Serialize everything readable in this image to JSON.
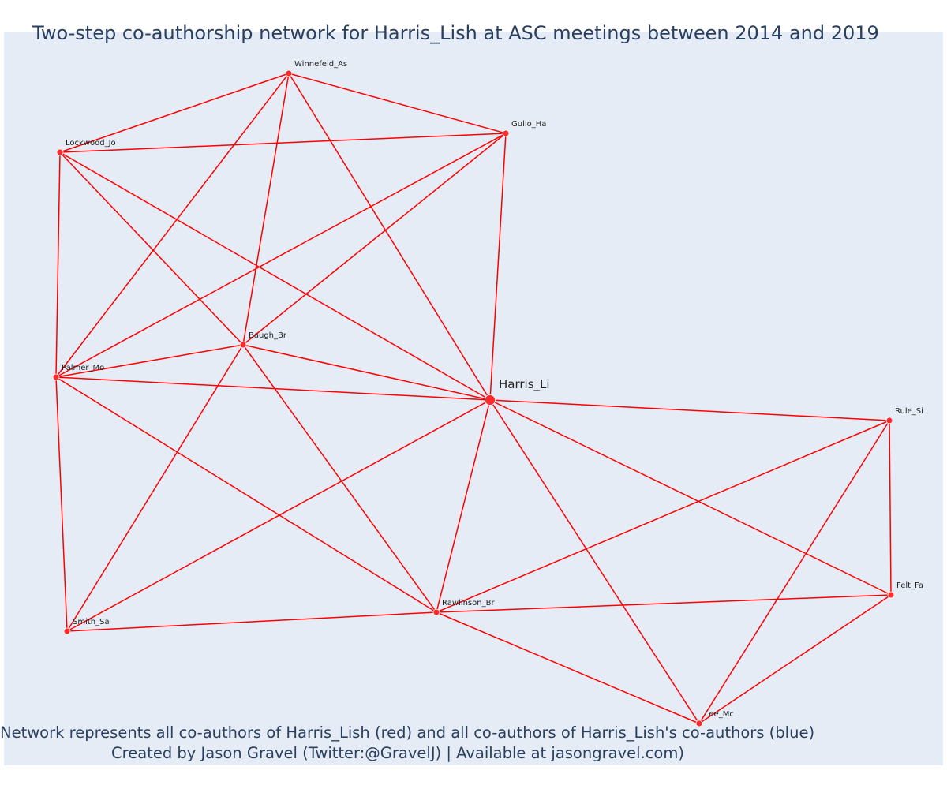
{
  "title": "Two-step co-authorship network for Harris_Lish at ASC meetings between 2014 and 2019",
  "footer": {
    "line1": "Network represents all co-authors of Harris_Lish (red) and all co-authors of Harris_Lish's co-authors (blue)",
    "line2": "Created by Jason Gravel (Twitter:@GravelJ) | Available at jasongravel.com)"
  },
  "colors": {
    "edge": "#ff0000",
    "node": "#ff2a2a",
    "node_outline": "#ffffff",
    "background": "#e5ecf6",
    "text": "#2a3f5f"
  },
  "nodes": [
    {
      "id": "Winnefeld_As",
      "label": "Winnefeld_As",
      "ego": false
    },
    {
      "id": "Gullo_Ha",
      "label": "Gullo_Ha",
      "ego": false
    },
    {
      "id": "Lockwood_Jo",
      "label": "Lockwood_Jo",
      "ego": false
    },
    {
      "id": "Baugh_Br",
      "label": "Baugh_Br",
      "ego": false
    },
    {
      "id": "Palmer_Mo",
      "label": "Palmer_Mo",
      "ego": false
    },
    {
      "id": "Harris_Li",
      "label": "Harris_Li",
      "ego": true
    },
    {
      "id": "Rule_Si",
      "label": "Rule_Si",
      "ego": false
    },
    {
      "id": "Felt_Fa",
      "label": "Felt_Fa",
      "ego": false
    },
    {
      "id": "Rawlinson_Br",
      "label": "Rawlinson_Br",
      "ego": false
    },
    {
      "id": "Smith_Sa",
      "label": "Smith_Sa",
      "ego": false
    },
    {
      "id": "Lee_Mc",
      "label": "Lee_Mc",
      "ego": false
    }
  ],
  "edges": [
    [
      "Winnefeld_As",
      "Lockwood_Jo"
    ],
    [
      "Winnefeld_As",
      "Gullo_Ha"
    ],
    [
      "Winnefeld_As",
      "Baugh_Br"
    ],
    [
      "Winnefeld_As",
      "Palmer_Mo"
    ],
    [
      "Winnefeld_As",
      "Harris_Li"
    ],
    [
      "Gullo_Ha",
      "Lockwood_Jo"
    ],
    [
      "Gullo_Ha",
      "Palmer_Mo"
    ],
    [
      "Gullo_Ha",
      "Baugh_Br"
    ],
    [
      "Gullo_Ha",
      "Harris_Li"
    ],
    [
      "Lockwood_Jo",
      "Palmer_Mo"
    ],
    [
      "Lockwood_Jo",
      "Baugh_Br"
    ],
    [
      "Lockwood_Jo",
      "Harris_Li"
    ],
    [
      "Baugh_Br",
      "Palmer_Mo"
    ],
    [
      "Baugh_Br",
      "Harris_Li"
    ],
    [
      "Baugh_Br",
      "Smith_Sa"
    ],
    [
      "Baugh_Br",
      "Rawlinson_Br"
    ],
    [
      "Palmer_Mo",
      "Harris_Li"
    ],
    [
      "Palmer_Mo",
      "Smith_Sa"
    ],
    [
      "Palmer_Mo",
      "Rawlinson_Br"
    ],
    [
      "Harris_Li",
      "Rule_Si"
    ],
    [
      "Harris_Li",
      "Felt_Fa"
    ],
    [
      "Harris_Li",
      "Rawlinson_Br"
    ],
    [
      "Harris_Li",
      "Smith_Sa"
    ],
    [
      "Harris_Li",
      "Lee_Mc"
    ],
    [
      "Rule_Si",
      "Rawlinson_Br"
    ],
    [
      "Rule_Si",
      "Felt_Fa"
    ],
    [
      "Rule_Si",
      "Lee_Mc"
    ],
    [
      "Felt_Fa",
      "Rawlinson_Br"
    ],
    [
      "Felt_Fa",
      "Lee_Mc"
    ],
    [
      "Rawlinson_Br",
      "Smith_Sa"
    ],
    [
      "Rawlinson_Br",
      "Lee_Mc"
    ]
  ]
}
